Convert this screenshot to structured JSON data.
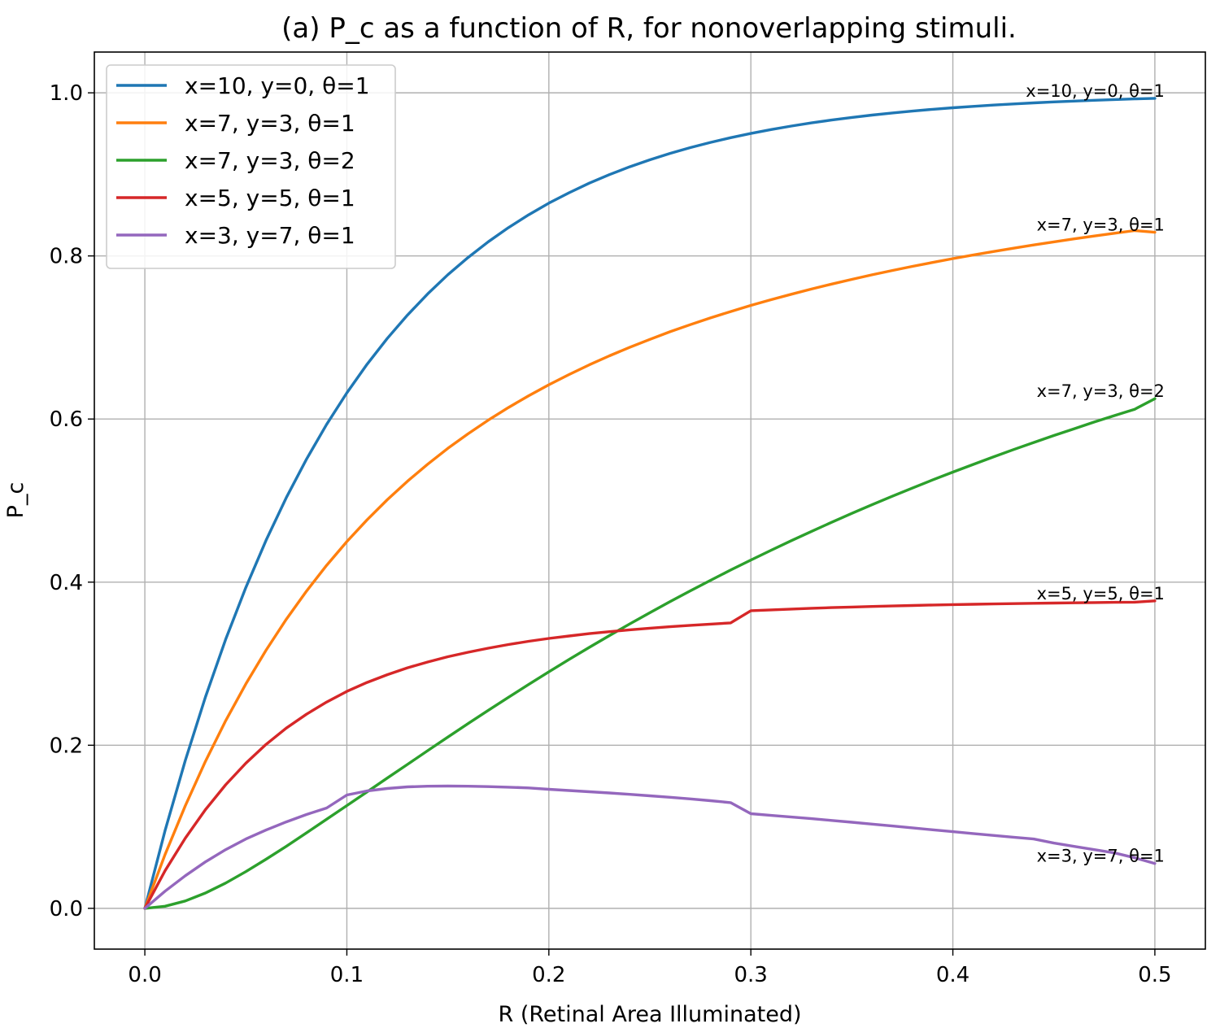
{
  "chart_data": {
    "type": "line",
    "title": "(a) P_c as a function of R, for nonoverlapping stimuli.",
    "xlabel": "R (Retinal Area Illuminated)",
    "ylabel": "P_c",
    "xlim": [
      -0.025,
      0.525
    ],
    "ylim": [
      -0.05,
      1.05
    ],
    "xticks": [
      0.0,
      0.1,
      0.2,
      0.3,
      0.4,
      0.5
    ],
    "xtick_labels": [
      "0.0",
      "0.1",
      "0.2",
      "0.3",
      "0.4",
      "0.5"
    ],
    "yticks": [
      0.0,
      0.2,
      0.4,
      0.6,
      0.8,
      1.0
    ],
    "ytick_labels": [
      "0.0",
      "0.2",
      "0.4",
      "0.6",
      "0.8",
      "1.0"
    ],
    "grid": true,
    "legend_position": "top-left",
    "x": [
      0.0,
      0.01,
      0.02,
      0.03,
      0.04,
      0.05,
      0.06,
      0.07,
      0.08,
      0.09,
      0.1,
      0.11,
      0.12,
      0.13,
      0.14,
      0.15,
      0.16,
      0.17,
      0.18,
      0.19,
      0.2,
      0.21,
      0.22,
      0.23,
      0.24,
      0.25,
      0.26,
      0.27,
      0.28,
      0.29,
      0.3,
      0.31,
      0.32,
      0.33,
      0.34,
      0.35,
      0.36,
      0.37,
      0.38,
      0.39,
      0.4,
      0.41,
      0.42,
      0.43,
      0.44,
      0.45,
      0.46,
      0.47,
      0.48,
      0.49,
      0.5
    ],
    "series": [
      {
        "name": "x=10, y=0, θ=1",
        "end_label": "x=10, y=0, θ=1",
        "color": "#1f77b4",
        "values": [
          0.0,
          0.0952,
          0.1813,
          0.2592,
          0.3297,
          0.3935,
          0.4512,
          0.5034,
          0.5507,
          0.5934,
          0.6321,
          0.6671,
          0.6988,
          0.7275,
          0.7534,
          0.7769,
          0.7981,
          0.8173,
          0.8347,
          0.8504,
          0.8647,
          0.8775,
          0.8892,
          0.8997,
          0.9093,
          0.9179,
          0.9257,
          0.9328,
          0.9392,
          0.945,
          0.9502,
          0.955,
          0.9592,
          0.9631,
          0.9666,
          0.9698,
          0.9727,
          0.9753,
          0.9776,
          0.9798,
          0.9817,
          0.9834,
          0.985,
          0.9864,
          0.9877,
          0.9889,
          0.9899,
          0.9909,
          0.9918,
          0.9926,
          0.9933
        ]
      },
      {
        "name": "x=7, y=3, θ=1",
        "end_label": "x=7, y=3, θ=1",
        "color": "#ff7f0e",
        "values": [
          0.0,
          0.0659,
          0.1257,
          0.1803,
          0.2299,
          0.2752,
          0.3165,
          0.3543,
          0.3889,
          0.4206,
          0.4497,
          0.4764,
          0.501,
          0.5237,
          0.5446,
          0.564,
          0.5819,
          0.5986,
          0.6141,
          0.6285,
          0.642,
          0.6546,
          0.6664,
          0.6775,
          0.6879,
          0.6977,
          0.707,
          0.7157,
          0.724,
          0.7318,
          0.7393,
          0.7463,
          0.753,
          0.7594,
          0.7655,
          0.7713,
          0.7768,
          0.7821,
          0.7872,
          0.792,
          0.7967,
          0.8011,
          0.8054,
          0.8095,
          0.8134,
          0.8172,
          0.8209,
          0.8244,
          0.8278,
          0.8311,
          0.829
        ]
      },
      {
        "name": "x=7, y=3, θ=2",
        "end_label": "x=7, y=3, θ=2",
        "color": "#2ca02c",
        "values": [
          0.0,
          0.0026,
          0.009,
          0.0188,
          0.031,
          0.045,
          0.0602,
          0.076,
          0.0925,
          0.1093,
          0.126,
          0.1428,
          0.1597,
          0.1765,
          0.1933,
          0.21,
          0.2265,
          0.2428,
          0.2588,
          0.2745,
          0.29,
          0.3052,
          0.32,
          0.3345,
          0.3487,
          0.3625,
          0.3761,
          0.3893,
          0.4022,
          0.4148,
          0.4271,
          0.4391,
          0.4508,
          0.4622,
          0.4734,
          0.4843,
          0.4949,
          0.5053,
          0.5154,
          0.5253,
          0.5349,
          0.5443,
          0.5535,
          0.5625,
          0.5712,
          0.5798,
          0.5881,
          0.5963,
          0.6042,
          0.612,
          0.625
        ]
      },
      {
        "name": "x=5, y=5, θ=1",
        "end_label": "x=5, y=5, θ=1",
        "color": "#d62728",
        "values": [
          0.0,
          0.046,
          0.086,
          0.121,
          0.1515,
          0.178,
          0.201,
          0.221,
          0.238,
          0.253,
          0.266,
          0.277,
          0.2865,
          0.295,
          0.302,
          0.3085,
          0.314,
          0.319,
          0.3235,
          0.3275,
          0.331,
          0.334,
          0.3368,
          0.3392,
          0.3415,
          0.3435,
          0.3453,
          0.347,
          0.3485,
          0.35,
          0.365,
          0.366,
          0.367,
          0.368,
          0.3688,
          0.3695,
          0.3702,
          0.3708,
          0.3714,
          0.3719,
          0.3724,
          0.3728,
          0.3732,
          0.3736,
          0.374,
          0.3743,
          0.3746,
          0.3749,
          0.3752,
          0.3754,
          0.377
        ]
      },
      {
        "name": "x=3, y=7, θ=1",
        "end_label": "x=3, y=7, θ=1",
        "color": "#9467bd",
        "values": [
          0.0,
          0.021,
          0.04,
          0.057,
          0.072,
          0.085,
          0.096,
          0.106,
          0.115,
          0.123,
          0.139,
          0.144,
          0.147,
          0.149,
          0.1498,
          0.15,
          0.1498,
          0.1493,
          0.1486,
          0.1477,
          0.146,
          0.1445,
          0.143,
          0.1415,
          0.1398,
          0.138,
          0.1362,
          0.1342,
          0.132,
          0.1296,
          0.116,
          0.114,
          0.112,
          0.11,
          0.1078,
          0.1056,
          0.1033,
          0.101,
          0.0987,
          0.0963,
          0.094,
          0.0917,
          0.0894,
          0.0872,
          0.085,
          0.08,
          0.076,
          0.072,
          0.068,
          0.062,
          0.055
        ]
      }
    ]
  }
}
